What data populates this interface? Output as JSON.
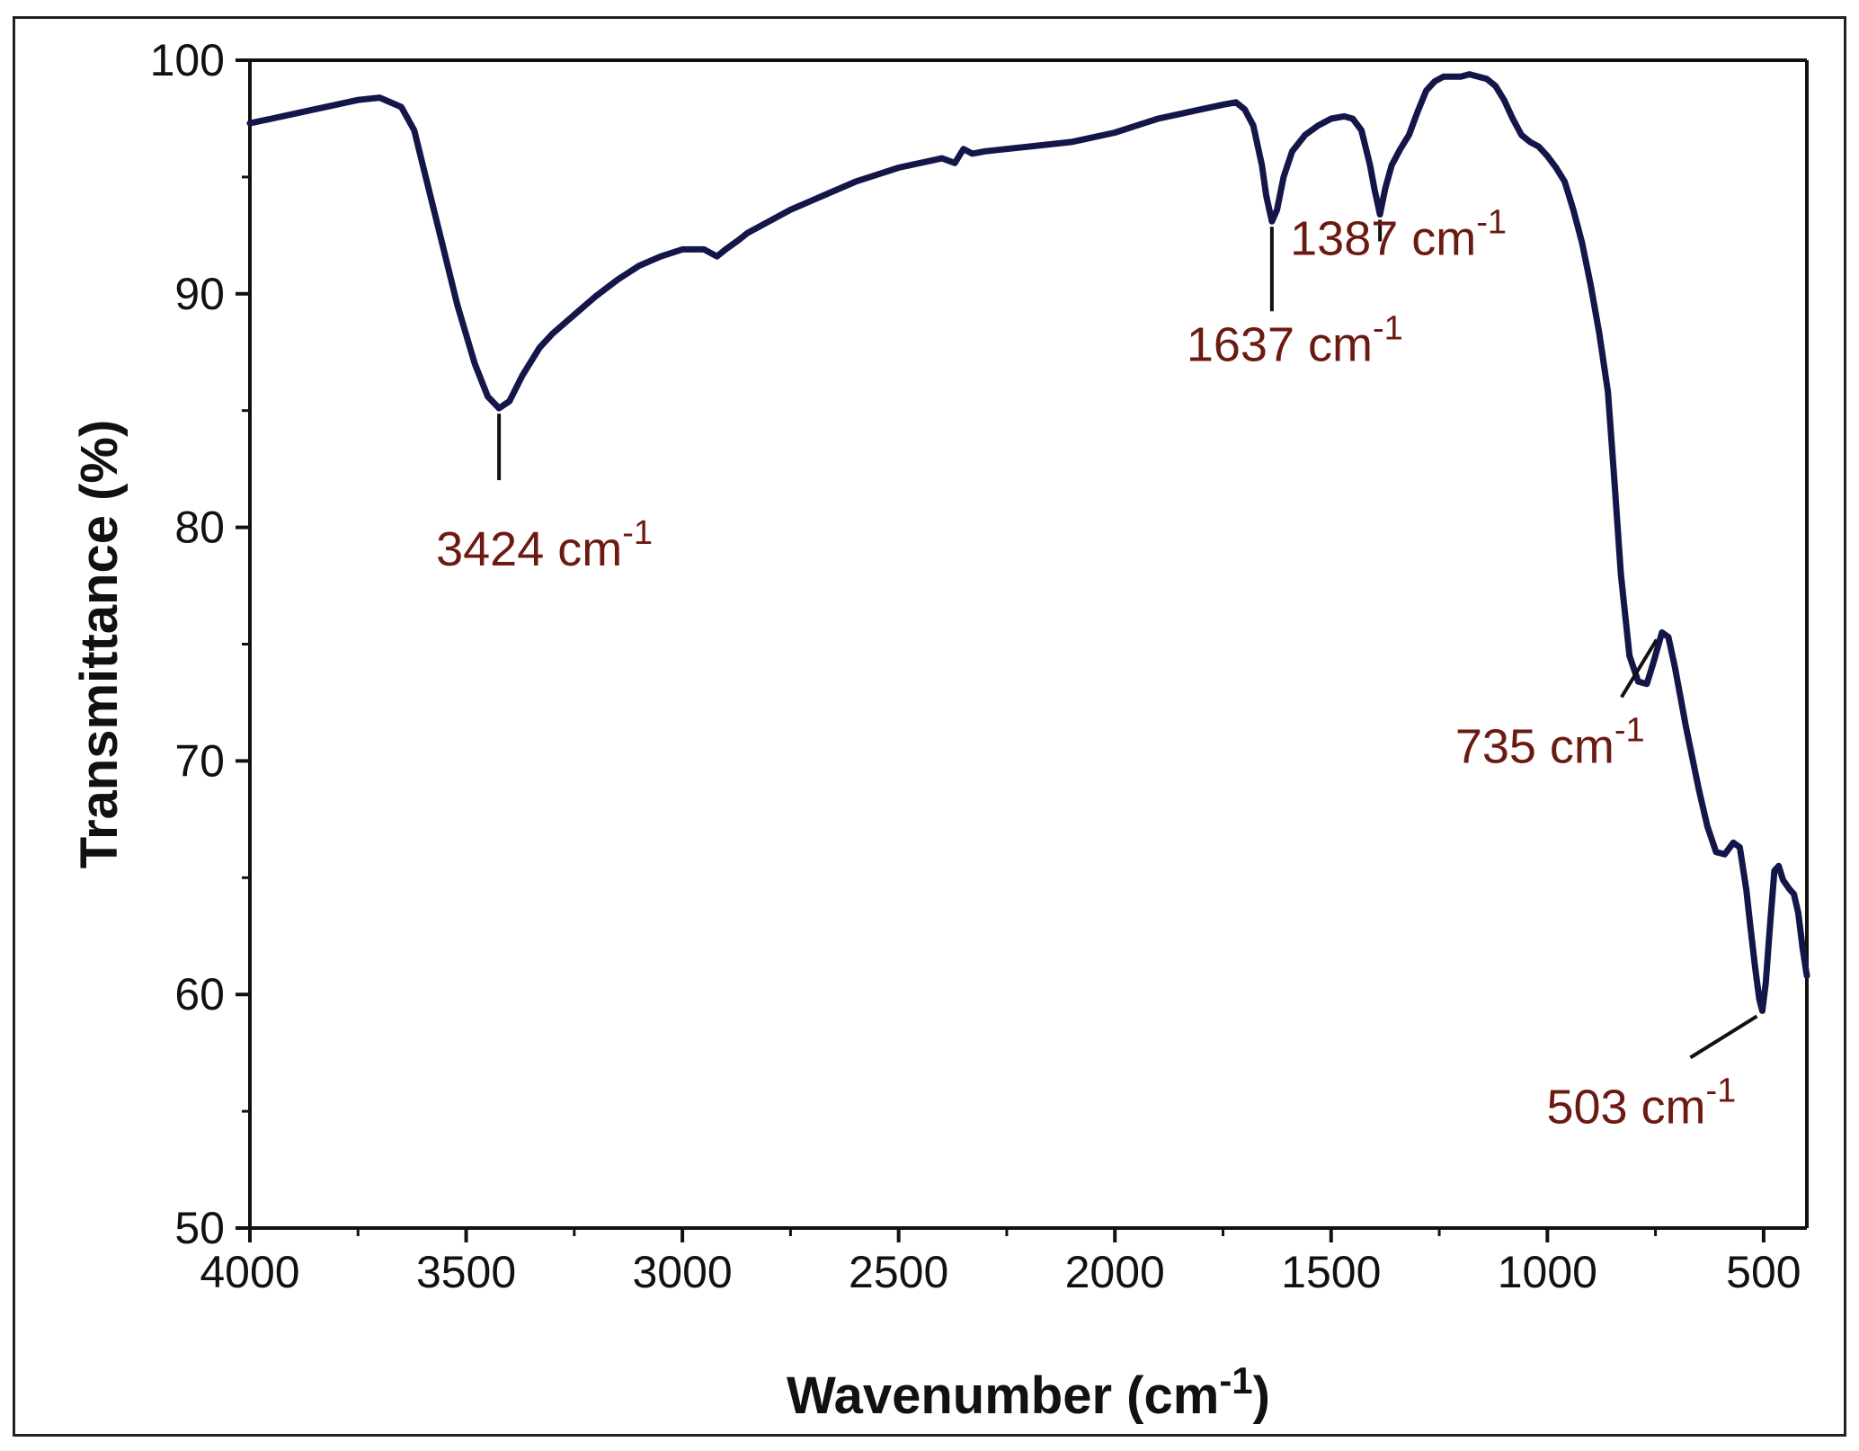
{
  "chart_data": {
    "type": "line",
    "xlabel": "Wavenumber (cm",
    "xlabel_sup": "-1",
    "xlabel_suffix": ")",
    "ylabel": "Transmittance (%)",
    "xlim": [
      4000,
      400
    ],
    "ylim": [
      50,
      100
    ],
    "x_ticks": [
      4000,
      3500,
      3000,
      2500,
      2000,
      1500,
      1000,
      500
    ],
    "x_tick_labels": [
      "4000",
      "3500",
      "3000",
      "2500",
      "2000",
      "1500",
      "1000",
      "500"
    ],
    "y_ticks": [
      50,
      60,
      70,
      80,
      90,
      100
    ],
    "y_tick_labels": [
      "50",
      "60",
      "70",
      "80",
      "90",
      "100"
    ],
    "grid": false,
    "line_color": "#14164a",
    "label_color": "#6b1a12",
    "series": [
      {
        "x": [
          4000,
          3950,
          3900,
          3850,
          3800,
          3750,
          3700,
          3650,
          3620,
          3600,
          3560,
          3520,
          3480,
          3450,
          3424,
          3400,
          3370,
          3330,
          3300,
          3250,
          3200,
          3150,
          3100,
          3050,
          3000,
          2950,
          2920,
          2900,
          2870,
          2850,
          2800,
          2750,
          2700,
          2650,
          2600,
          2550,
          2500,
          2450,
          2400,
          2370,
          2350,
          2330,
          2300,
          2250,
          2200,
          2150,
          2100,
          2050,
          2000,
          1950,
          1900,
          1850,
          1800,
          1750,
          1720,
          1700,
          1680,
          1660,
          1650,
          1637,
          1625,
          1610,
          1590,
          1560,
          1530,
          1500,
          1470,
          1450,
          1430,
          1410,
          1400,
          1387,
          1375,
          1360,
          1340,
          1320,
          1300,
          1280,
          1260,
          1240,
          1220,
          1200,
          1180,
          1160,
          1140,
          1120,
          1100,
          1080,
          1060,
          1040,
          1020,
          1000,
          980,
          960,
          940,
          920,
          900,
          880,
          860,
          845,
          830,
          810,
          790,
          770,
          755,
          735,
          720,
          705,
          690,
          680,
          670,
          650,
          630,
          610,
          590,
          570,
          555,
          540,
          530,
          520,
          510,
          503,
          495,
          485,
          475,
          465,
          455,
          440,
          430,
          420,
          410,
          400
        ],
        "y": [
          97.3,
          97.5,
          97.7,
          97.9,
          98.1,
          98.3,
          98.4,
          98.0,
          97.0,
          95.5,
          92.5,
          89.5,
          87.0,
          85.6,
          85.1,
          85.4,
          86.5,
          87.7,
          88.3,
          89.1,
          89.9,
          90.6,
          91.2,
          91.6,
          91.9,
          91.9,
          91.6,
          91.9,
          92.3,
          92.6,
          93.1,
          93.6,
          94.0,
          94.4,
          94.8,
          95.1,
          95.4,
          95.6,
          95.8,
          95.6,
          96.2,
          96.0,
          96.1,
          96.2,
          96.3,
          96.4,
          96.5,
          96.7,
          96.9,
          97.2,
          97.5,
          97.7,
          97.9,
          98.1,
          98.2,
          97.9,
          97.2,
          95.5,
          94.2,
          93.1,
          93.6,
          95.0,
          96.1,
          96.8,
          97.2,
          97.5,
          97.6,
          97.5,
          97.0,
          95.5,
          94.5,
          93.4,
          94.5,
          95.5,
          96.2,
          96.8,
          97.8,
          98.7,
          99.1,
          99.3,
          99.3,
          99.3,
          99.4,
          99.3,
          99.2,
          98.9,
          98.3,
          97.5,
          96.8,
          96.5,
          96.3,
          95.9,
          95.4,
          94.8,
          93.6,
          92.2,
          90.4,
          88.3,
          85.8,
          82.0,
          78.0,
          74.5,
          73.4,
          73.3,
          74.2,
          75.5,
          75.3,
          74.0,
          72.5,
          71.5,
          70.6,
          68.8,
          67.2,
          66.1,
          66.0,
          66.5,
          66.3,
          64.5,
          62.8,
          61.2,
          59.8,
          59.3,
          60.5,
          63.0,
          65.3,
          65.5,
          64.9,
          64.5,
          64.3,
          63.5,
          62.0,
          60.8
        ]
      }
    ],
    "annotations": [
      {
        "wavenumber": 3424,
        "text": "3424 cm",
        "sup": "-1"
      },
      {
        "wavenumber": 1637,
        "text": "1637 cm",
        "sup": "-1"
      },
      {
        "wavenumber": 1387,
        "text": "1387 cm",
        "sup": "-1"
      },
      {
        "wavenumber": 735,
        "text": "735 cm",
        "sup": "-1"
      },
      {
        "wavenumber": 503,
        "text": "503 cm",
        "sup": "-1"
      }
    ]
  }
}
